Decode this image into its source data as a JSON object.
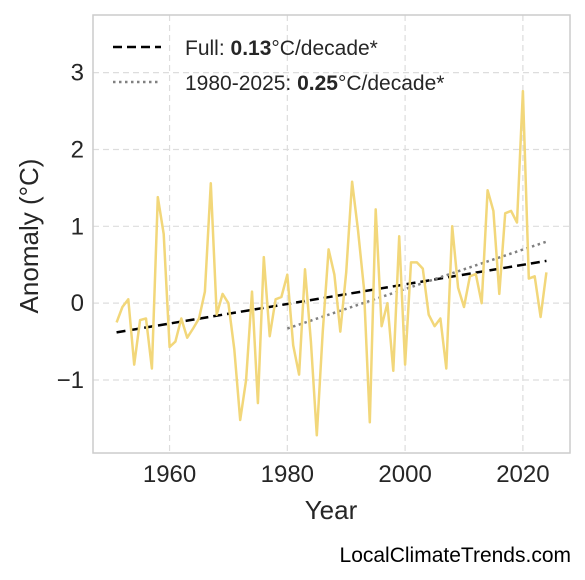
{
  "chart_data": {
    "type": "line",
    "xlabel": "Year",
    "ylabel": "Anomaly (°C)",
    "xlim": [
      1947,
      2028
    ],
    "ylim": [
      -1.95,
      3.75
    ],
    "x_ticks": [
      1960,
      1980,
      2000,
      2020
    ],
    "y_ticks": [
      -1,
      0,
      1,
      2,
      3
    ],
    "y_tick_labels": [
      "−1",
      "0",
      "1",
      "2",
      "3"
    ],
    "grid": true,
    "legend_position": "top-left",
    "colors": {
      "series": "#f2d77a",
      "trend_full": "#000000",
      "trend_recent": "#808080",
      "grid": "#dddddd",
      "frame": "#cccccc"
    },
    "series": [
      {
        "x": [
          1951,
          1952,
          1953,
          1954,
          1955,
          1956,
          1957,
          1958,
          1959,
          1960,
          1961,
          1962,
          1963,
          1964,
          1965,
          1966,
          1967,
          1968,
          1969,
          1970,
          1971,
          1972,
          1973,
          1974,
          1975,
          1976,
          1977,
          1978,
          1979,
          1980,
          1981,
          1982,
          1983,
          1984,
          1985,
          1986,
          1987,
          1988,
          1989,
          1990,
          1991,
          1992,
          1993,
          1994,
          1995,
          1996,
          1997,
          1998,
          1999,
          2000,
          2001,
          2002,
          2003,
          2004,
          2005,
          2006,
          2007,
          2008,
          2009,
          2010,
          2011,
          2012,
          2013,
          2014,
          2015,
          2016,
          2017,
          2018,
          2019,
          2020,
          2021,
          2022,
          2023,
          2024
        ],
        "values": [
          -0.25,
          -0.05,
          0.05,
          -0.8,
          -0.22,
          -0.2,
          -0.85,
          1.38,
          0.9,
          -0.57,
          -0.5,
          -0.2,
          -0.45,
          -0.33,
          -0.2,
          0.15,
          1.56,
          -0.15,
          0.12,
          0.0,
          -0.6,
          -1.52,
          -1.0,
          0.15,
          -1.3,
          0.6,
          -0.43,
          0.05,
          0.08,
          0.37,
          -0.55,
          -0.93,
          0.44,
          -0.5,
          -1.72,
          -0.38,
          0.7,
          0.37,
          -0.37,
          0.4,
          1.58,
          0.95,
          0.2,
          -1.55,
          1.22,
          -0.3,
          0.0,
          -0.88,
          0.87,
          -0.8,
          0.53,
          0.53,
          0.45,
          -0.15,
          -0.3,
          -0.2,
          -0.85,
          1.0,
          0.2,
          -0.05,
          0.35,
          0.38,
          0.0,
          1.47,
          1.2,
          0.12,
          1.17,
          1.2,
          1.05,
          2.76,
          0.32,
          0.35,
          -0.18,
          0.4
        ]
      }
    ],
    "trendlines": [
      {
        "x": [
          1951,
          2024
        ],
        "values": [
          -0.38,
          0.55
        ],
        "style": "dashed",
        "label_prefix": "Full: ",
        "label_rate": "0.13",
        "label_suffix": "°C/decade*"
      },
      {
        "x": [
          1980,
          2024
        ],
        "values": [
          -0.33,
          0.8
        ],
        "style": "dotted",
        "label_prefix": "1980-2025: ",
        "label_rate": "0.25",
        "label_suffix": "°C/decade*"
      }
    ]
  },
  "watermark": "LocalClimateTrends.com"
}
